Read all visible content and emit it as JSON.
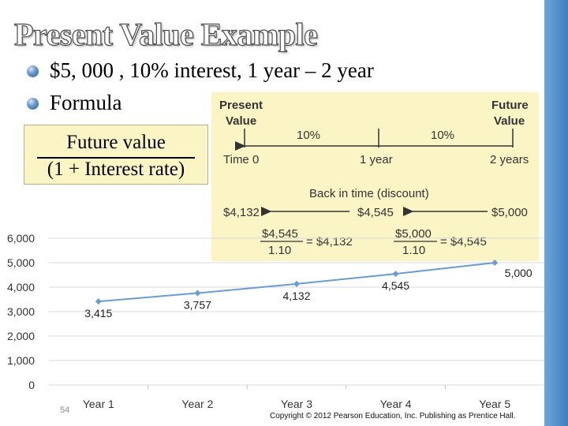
{
  "slide": {
    "title": "Present Value Example",
    "bullets": [
      "$5, 000 , 10% interest, 1 year – 2 year",
      "Formula"
    ],
    "formula": {
      "numerator": "Future value",
      "denominator": "(1 + Interest rate)"
    },
    "page_number": "54",
    "copyright": "Copyright © 2012 Pearson Education, Inc. Publishing as Prentice Hall."
  },
  "timeline": {
    "present_label": [
      "Present",
      "Value"
    ],
    "future_label": [
      "Future",
      "Value"
    ],
    "rate_1": "10%",
    "rate_2": "10%",
    "time_0": "Time 0",
    "time_1": "1 year",
    "time_2": "2 years",
    "back_in_time": "Back in time (discount)",
    "pv_2": "$4,132",
    "pv_1": "$4,545",
    "fv": "$5,000",
    "calc_1": {
      "numerator": "$4,545",
      "denominator": "1.10",
      "result": "= $4,132"
    },
    "calc_2": {
      "numerator": "$5,000",
      "denominator": "1.10",
      "result": "= $4,545"
    }
  },
  "chart_data": {
    "type": "line",
    "categories": [
      "Year 1",
      "Year 2",
      "Year 3",
      "Year 4",
      "Year 5"
    ],
    "series": [
      {
        "values": [
          3415,
          3757,
          4132,
          4545,
          5000
        ]
      }
    ],
    "data_labels": [
      "3,415",
      "3,757",
      "4,132",
      "4,545",
      "5,000"
    ],
    "y_ticks": [
      0,
      1000,
      2000,
      3000,
      4000,
      5000,
      6000
    ],
    "y_tick_labels": [
      "0",
      "1,000",
      "2,000",
      "3,000",
      "4,000",
      "5,000",
      "6,000"
    ],
    "ylim": [
      0,
      6000
    ],
    "grid": true,
    "line_color": "#6a9bd1",
    "title": "",
    "xlabel": "",
    "ylabel": ""
  },
  "colors": {
    "accent_bar": "#4a8ccc",
    "panel_bg": "#fbf5c6"
  }
}
